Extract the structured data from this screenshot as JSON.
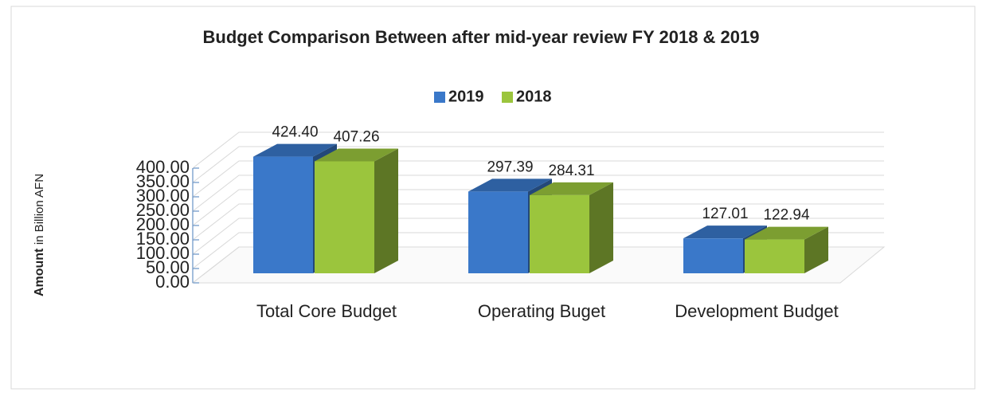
{
  "chart_data": {
    "type": "bar3d",
    "title": "Budget Comparison Between after mid-year review FY 2018 & 2019",
    "ylabel": {
      "main": "Amount",
      "detail": "in Billion AFN"
    },
    "categories": [
      "Total Core Budget",
      "Operating Buget",
      "Development Budget"
    ],
    "series": [
      {
        "name": "2019",
        "color": "#3a78c9",
        "values": [
          424.4,
          297.39,
          127.01
        ],
        "value_labels": [
          "424.40",
          "297.39",
          "127.01"
        ]
      },
      {
        "name": "2018",
        "color": "#9bc53d",
        "values": [
          407.26,
          284.31,
          122.94
        ],
        "value_labels": [
          "407.26",
          "284.31",
          "122.94"
        ]
      }
    ],
    "ylim": [
      0,
      400
    ],
    "yticks": [
      {
        "value": 0,
        "label": "0.00"
      },
      {
        "value": 50,
        "label": "50.00"
      },
      {
        "value": 100,
        "label": "100.00"
      },
      {
        "value": 150,
        "label": "150.00"
      },
      {
        "value": 200,
        "label": "200.00"
      },
      {
        "value": 250,
        "label": "250.00"
      },
      {
        "value": 300,
        "label": "300.00"
      },
      {
        "value": 350,
        "label": "350.00"
      },
      {
        "value": 400,
        "label": "400.00"
      }
    ],
    "grid": true,
    "legend": "top"
  }
}
